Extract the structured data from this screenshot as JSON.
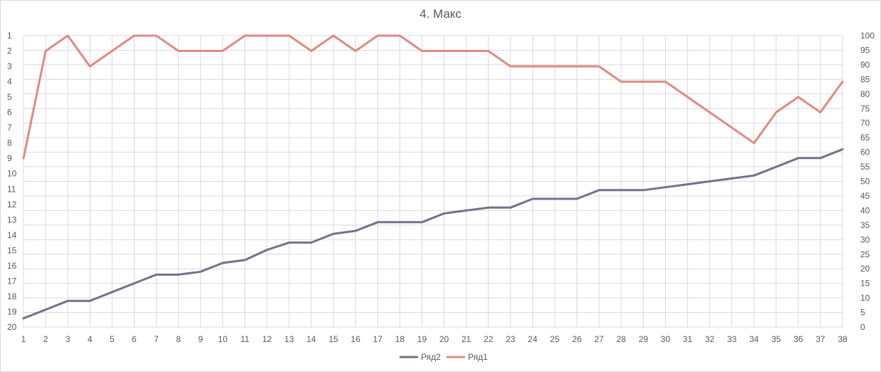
{
  "chart_data": {
    "type": "line",
    "title": "4. Макс",
    "x": [
      1,
      2,
      3,
      4,
      5,
      6,
      7,
      8,
      9,
      10,
      11,
      12,
      13,
      14,
      15,
      16,
      17,
      18,
      19,
      20,
      21,
      22,
      23,
      24,
      25,
      26,
      27,
      28,
      29,
      30,
      31,
      32,
      33,
      34,
      35,
      36,
      37,
      38
    ],
    "x_ticks": [
      "1",
      "2",
      "3",
      "4",
      "5",
      "6",
      "7",
      "8",
      "9",
      "10",
      "11",
      "12",
      "13",
      "14",
      "15",
      "16",
      "17",
      "18",
      "19",
      "20",
      "21",
      "22",
      "23",
      "24",
      "25",
      "26",
      "27",
      "28",
      "29",
      "30",
      "31",
      "32",
      "33",
      "34",
      "35",
      "36",
      "37",
      "38"
    ],
    "y_left": {
      "ticks": [
        "1",
        "2",
        "3",
        "4",
        "5",
        "6",
        "7",
        "8",
        "9",
        "10",
        "11",
        "12",
        "13",
        "14",
        "15",
        "16",
        "17",
        "18",
        "19",
        "20"
      ],
      "range": [
        1,
        20
      ],
      "reversed": true
    },
    "y_right": {
      "ticks": [
        "100",
        "95",
        "90",
        "85",
        "80",
        "75",
        "70",
        "65",
        "60",
        "55",
        "50",
        "45",
        "40",
        "35",
        "30",
        "25",
        "20",
        "15",
        "10",
        "5",
        "0"
      ],
      "range": [
        0,
        100
      ]
    },
    "grid": true,
    "legend_position": "bottom",
    "series": [
      {
        "name": "Ряд2",
        "axis": "right",
        "color": "#75708A",
        "values": [
          3,
          6,
          9,
          9,
          12,
          15,
          18,
          18,
          19,
          22,
          23,
          26.5,
          29,
          29,
          32,
          33,
          36,
          36,
          36,
          39,
          40,
          41,
          41,
          44,
          44,
          44,
          47,
          47,
          47,
          48,
          49,
          50,
          51,
          52,
          55,
          58,
          58,
          61
        ]
      },
      {
        "name": "Ряд1",
        "axis": "left",
        "color": "#E08A80",
        "values": [
          9,
          2,
          1,
          3,
          2,
          1,
          1,
          2,
          2,
          2,
          1,
          1,
          1,
          2,
          1,
          2,
          1,
          1,
          2,
          2,
          2,
          2,
          3,
          3,
          3,
          3,
          3,
          4,
          4,
          4,
          5,
          6,
          7,
          8,
          6,
          5,
          6,
          4
        ]
      }
    ]
  }
}
